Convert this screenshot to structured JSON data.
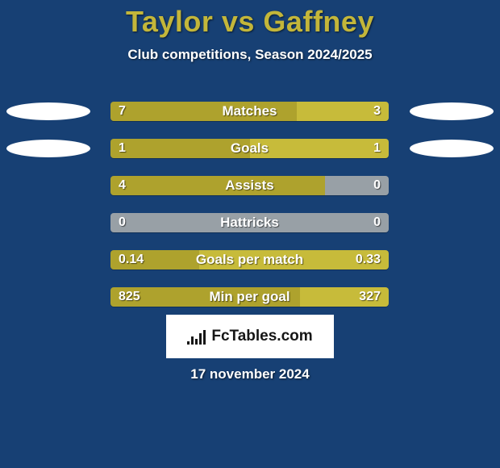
{
  "background_color": "#174074",
  "title": {
    "text": "Taylor vs Gaffney",
    "color": "#c3b63a",
    "fontsize": 36
  },
  "subtitle": {
    "text": "Club competitions, Season 2024/2025",
    "color": "#ffffff",
    "fontsize": 17
  },
  "bar_colors": {
    "left": "#aea22d",
    "right": "#c7bb3a",
    "center": "#aea22d",
    "neutral": "#98a0a6"
  },
  "placeholder_color": "#ffffff",
  "rows": [
    {
      "label": "Matches",
      "left_val": "7",
      "right_val": "3",
      "left_pct": 67,
      "right_pct": 33,
      "show_placeholders": true
    },
    {
      "label": "Goals",
      "left_val": "1",
      "right_val": "1",
      "left_pct": 50,
      "right_pct": 50,
      "show_placeholders": true
    },
    {
      "label": "Assists",
      "left_val": "4",
      "right_val": "0",
      "left_pct": 77,
      "right_pct": 23,
      "right_neutral": true,
      "show_placeholders": false
    },
    {
      "label": "Hattricks",
      "left_val": "0",
      "right_val": "0",
      "left_pct": 50,
      "right_pct": 50,
      "all_neutral": true,
      "show_placeholders": false
    },
    {
      "label": "Goals per match",
      "left_val": "0.14",
      "right_val": "0.33",
      "left_pct": 32,
      "right_pct": 68,
      "show_placeholders": false
    },
    {
      "label": "Min per goal",
      "left_val": "825",
      "right_val": "327",
      "left_pct": 68,
      "right_pct": 32,
      "show_placeholders": false
    }
  ],
  "brand": {
    "text": "FcTables.com",
    "background": "#ffffff",
    "text_color": "#161616"
  },
  "date": {
    "text": "17 november 2024",
    "color": "#ffffff"
  },
  "logo_bars": [
    4,
    10,
    7,
    14,
    18
  ]
}
